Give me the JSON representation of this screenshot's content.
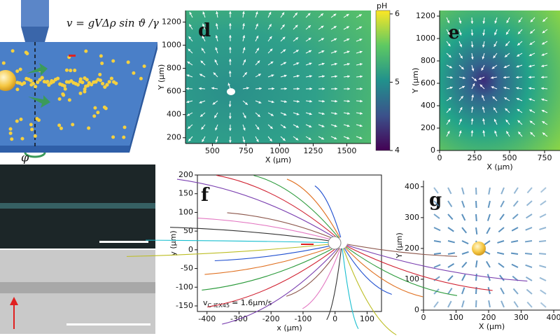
{
  "schematic": {
    "equation": "v = gVΔρ sin ϑ /γ",
    "angle": "φ"
  },
  "panels": [
    {
      "label": "d",
      "x_label": "X (μm)",
      "y_label": "Y (μm)",
      "xlim": [
        300,
        1680
      ],
      "ylim": [
        150,
        1300
      ],
      "xticks": [
        500,
        750,
        1000,
        1250,
        1500
      ],
      "yticks": [
        200,
        400,
        600,
        800,
        1000,
        1200
      ],
      "colorbar": {
        "label": "pH",
        "lim": [
          4,
          6.05
        ],
        "ticks": [
          4,
          5,
          6
        ]
      }
    },
    {
      "label": "e",
      "x_label": "X (μm)",
      "y_label": "Y (μm)",
      "xlim": [
        0,
        900
      ],
      "ylim": [
        0,
        1250
      ],
      "xticks": [
        0,
        250,
        500,
        750
      ],
      "yticks": [
        0,
        200,
        400,
        600,
        800,
        1000,
        1200
      ]
    },
    {
      "label": "f",
      "x_label": "x (μm)",
      "y_label": "y (μm)",
      "xlim": [
        -430,
        145
      ],
      "ylim": [
        -165,
        200
      ],
      "xticks": [
        -400,
        -300,
        -200,
        -100,
        0,
        100
      ],
      "yticks": [
        -150,
        -100,
        -50,
        0,
        50,
        100,
        150,
        200
      ],
      "annotation": {
        "symbol": "v",
        "subscript": "C-IEX45",
        "text": "= 1.6μm/s"
      }
    },
    {
      "label": "g",
      "x_label": "X (μm)",
      "y_label": "Y (μm)",
      "xlim": [
        0,
        430
      ],
      "ylim": [
        0,
        420
      ],
      "xticks": [
        0,
        100,
        200,
        300,
        400
      ],
      "yticks": [
        0,
        100,
        200,
        300,
        400
      ]
    }
  ]
}
